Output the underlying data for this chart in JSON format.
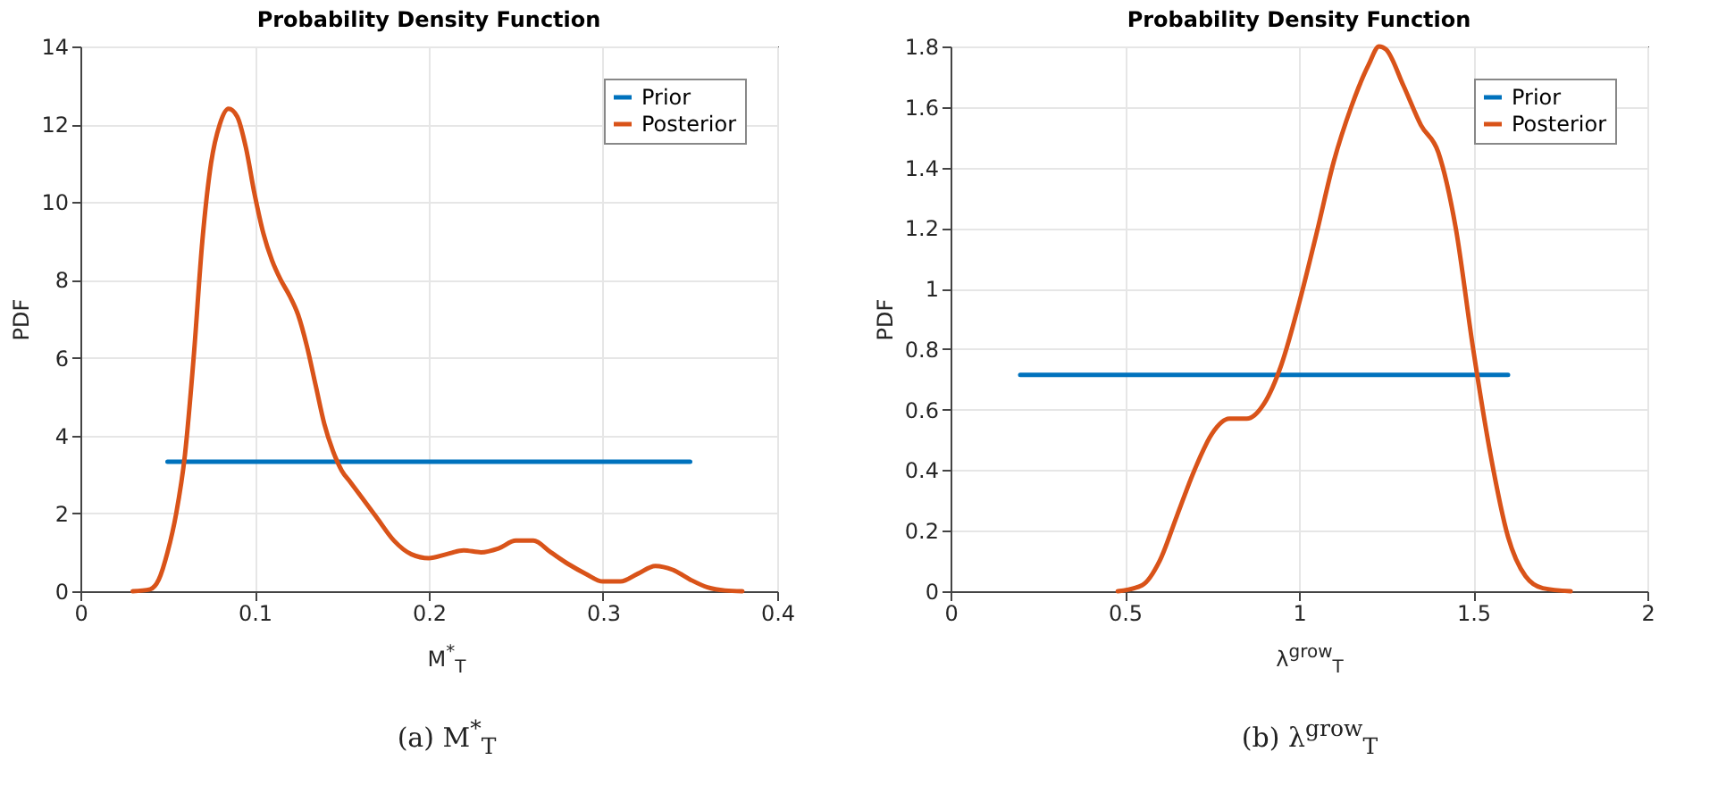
{
  "chart_data": [
    {
      "type": "line",
      "title": "Probability Density Function",
      "xlabel": "M$^{*}$$_{T}$",
      "ylabel": "PDF",
      "annotations": [
        "(a) M$^{*}$$_{T}$"
      ],
      "xlim": [
        0,
        0.4
      ],
      "xticks": [
        0,
        0.1,
        0.2,
        0.3,
        0.4
      ],
      "ylim": [
        0,
        14
      ],
      "yticks": [
        0,
        2,
        4,
        6,
        8,
        10,
        12,
        14
      ],
      "grid": true,
      "legend": "top right",
      "series": [
        {
          "name": "Prior",
          "color": "#0072bd",
          "x": [
            0.05,
            0.35
          ],
          "values": [
            3.33,
            3.33
          ]
        },
        {
          "name": "Posterior",
          "color": "#d95319",
          "x": [
            0.03,
            0.04,
            0.045,
            0.05,
            0.055,
            0.06,
            0.065,
            0.07,
            0.075,
            0.08,
            0.085,
            0.09,
            0.095,
            0.1,
            0.105,
            0.11,
            0.115,
            0.12,
            0.125,
            0.13,
            0.135,
            0.14,
            0.145,
            0.15,
            0.155,
            0.16,
            0.17,
            0.18,
            0.19,
            0.2,
            0.21,
            0.22,
            0.23,
            0.24,
            0.25,
            0.26,
            0.27,
            0.28,
            0.29,
            0.3,
            0.31,
            0.32,
            0.33,
            0.34,
            0.35,
            0.36,
            0.37,
            0.38
          ],
          "values": [
            0,
            0.05,
            0.3,
            1,
            2,
            3.5,
            6,
            9,
            11,
            12,
            12.4,
            12.2,
            11.4,
            10.2,
            9.2,
            8.5,
            8.0,
            7.6,
            7.1,
            6.3,
            5.3,
            4.3,
            3.6,
            3.1,
            2.8,
            2.5,
            1.9,
            1.3,
            0.95,
            0.85,
            0.95,
            1.05,
            1.0,
            1.1,
            1.3,
            1.3,
            1.0,
            0.7,
            0.45,
            0.25,
            0.25,
            0.45,
            0.65,
            0.55,
            0.3,
            0.1,
            0.02,
            0
          ]
        }
      ]
    },
    {
      "type": "line",
      "title": "Probability Density Function",
      "xlabel": "λ$^{grow}$$_{T}$",
      "ylabel": "PDF",
      "annotations": [
        "(b) λ$^{grow}$$_{T}$"
      ],
      "xlim": [
        0,
        2
      ],
      "xticks": [
        0,
        0.5,
        1,
        1.5,
        2
      ],
      "ylim": [
        0,
        1.8
      ],
      "yticks": [
        0,
        0.2,
        0.4,
        0.6,
        0.8,
        1,
        1.2,
        1.4,
        1.6,
        1.8
      ],
      "grid": true,
      "legend": "top right",
      "series": [
        {
          "name": "Prior",
          "color": "#0072bd",
          "x": [
            0.2,
            1.6
          ],
          "values": [
            0.715,
            0.715
          ]
        },
        {
          "name": "Posterior",
          "color": "#d95319",
          "x": [
            0.48,
            0.55,
            0.6,
            0.65,
            0.7,
            0.75,
            0.8,
            0.85,
            0.9,
            0.95,
            1.0,
            1.05,
            1.1,
            1.15,
            1.2,
            1.23,
            1.25,
            1.3,
            1.35,
            1.4,
            1.45,
            1.5,
            1.55,
            1.6,
            1.65,
            1.7,
            1.78
          ],
          "values": [
            0,
            0.02,
            0.1,
            0.25,
            0.4,
            0.52,
            0.57,
            0.57,
            0.62,
            0.75,
            0.95,
            1.18,
            1.42,
            1.6,
            1.74,
            1.8,
            1.79,
            1.67,
            1.54,
            1.45,
            1.2,
            0.8,
            0.45,
            0.18,
            0.05,
            0.01,
            0
          ]
        }
      ]
    }
  ]
}
